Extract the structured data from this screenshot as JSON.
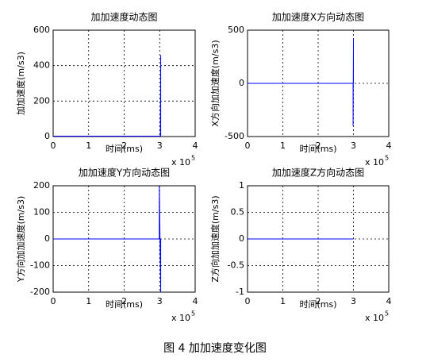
{
  "chart_data": [
    {
      "type": "line",
      "title": "加加速度动态图",
      "xlabel": "时间(ms)",
      "ylabel": "加加速度(m/s3)",
      "x_multiplier": "x 10",
      "x_exponent": "5",
      "xlim": [
        0,
        4
      ],
      "xticks": [
        0,
        1,
        2,
        3,
        4
      ],
      "ylim": [
        0,
        600
      ],
      "yticks": [
        0,
        200,
        400,
        600
      ],
      "grid": true,
      "x": [
        0,
        3.02,
        3.03,
        3.03
      ],
      "values": [
        2,
        2,
        460,
        0
      ],
      "color": "#0000ff"
    },
    {
      "type": "line",
      "title": "加加速度X方向动态图",
      "xlabel": "时间(ms)",
      "ylabel": "X方向加加速度(m/s3)",
      "x_multiplier": "x 10",
      "x_exponent": "5",
      "xlim": [
        0,
        4
      ],
      "xticks": [
        0,
        1,
        2,
        3,
        4
      ],
      "ylim": [
        -500,
        500
      ],
      "yticks": [
        -500,
        0,
        500
      ],
      "grid": true,
      "x": [
        0,
        2.99,
        2.99,
        3.0,
        3.0
      ],
      "values": [
        0,
        0,
        -400,
        420,
        0
      ],
      "color": "#0000ff"
    },
    {
      "type": "line",
      "title": "加加速度Y方向动态图",
      "xlabel": "时间(ms)",
      "ylabel": "Y方向加加速度(m/s3)",
      "x_multiplier": "x 10",
      "x_exponent": "5",
      "xlim": [
        0,
        4
      ],
      "xticks": [
        0,
        1,
        2,
        3,
        4
      ],
      "ylim": [
        -200,
        200
      ],
      "yticks": [
        -200,
        -100,
        0,
        100,
        200
      ],
      "grid": true,
      "x": [
        0,
        2.99,
        2.99,
        3.03,
        3.03
      ],
      "values": [
        0,
        0,
        200,
        -200,
        0
      ],
      "color": "#0000ff"
    },
    {
      "type": "line",
      "title": "加加速度Z方向动态图",
      "xlabel": "时间(ms)",
      "ylabel": "Z方向加加速度(m/s3)",
      "x_multiplier": "x 10",
      "x_exponent": "5",
      "xlim": [
        0,
        4
      ],
      "xticks": [
        0,
        1,
        2,
        3,
        4
      ],
      "ylim": [
        -1,
        1
      ],
      "yticks": [
        -1,
        -0.5,
        0,
        0.5,
        1
      ],
      "grid": true,
      "x": [
        0,
        3.0
      ],
      "values": [
        0,
        0
      ],
      "color": "#0000ff"
    }
  ],
  "caption": "图 4  加加速度变化图"
}
